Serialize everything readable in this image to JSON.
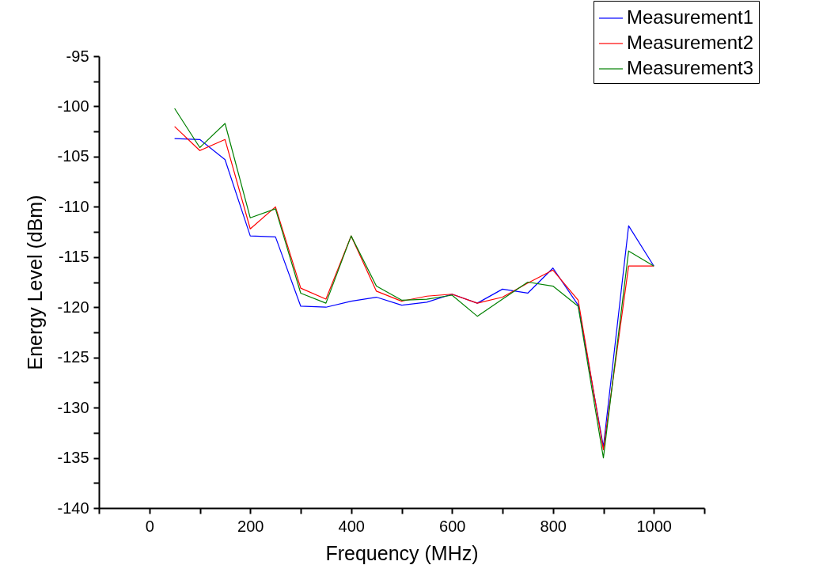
{
  "chart_data": {
    "type": "line",
    "xlabel": "Frequency (MHz)",
    "ylabel": "Energy Level (dBm)",
    "x": [
      50,
      100,
      150,
      200,
      250,
      300,
      350,
      400,
      450,
      500,
      550,
      600,
      650,
      700,
      750,
      800,
      850,
      900,
      950,
      1000
    ],
    "series": [
      {
        "name": "Measurement1",
        "color": "#0000ff",
        "values": [
          -103.2,
          -103.3,
          -105.3,
          -112.9,
          -113.0,
          -119.9,
          -120.0,
          -119.4,
          -119.0,
          -119.8,
          -119.5,
          -118.7,
          -119.6,
          -118.2,
          -118.6,
          -116.1,
          -119.8,
          -133.9,
          -111.9,
          -115.9
        ]
      },
      {
        "name": "Measurement2",
        "color": "#ff0000",
        "values": [
          -102.0,
          -104.4,
          -103.3,
          -112.2,
          -110.0,
          -118.1,
          -119.2,
          -112.9,
          -118.4,
          -119.4,
          -118.9,
          -118.7,
          -119.6,
          -119.0,
          -117.6,
          -116.3,
          -119.3,
          -134.2,
          -115.9,
          -115.9
        ]
      },
      {
        "name": "Measurement3",
        "color": "#008000",
        "values": [
          -100.2,
          -104.1,
          -101.7,
          -111.1,
          -110.2,
          -118.6,
          -119.6,
          -112.9,
          -117.9,
          -119.3,
          -119.2,
          -118.8,
          -120.9,
          -119.2,
          -117.5,
          -117.9,
          -119.9,
          -135.0,
          -114.4,
          -115.9
        ]
      }
    ],
    "xlim": [
      -100,
      1100
    ],
    "xticks": [
      {
        "value": -100,
        "label": null
      },
      0,
      {
        "value": 100,
        "label": null
      },
      200,
      {
        "value": 300,
        "label": null
      },
      400,
      {
        "value": 500,
        "label": null
      },
      600,
      {
        "value": 700,
        "label": null
      },
      800,
      {
        "value": 900,
        "label": null
      },
      1000,
      {
        "value": 1100,
        "label": null
      }
    ],
    "ylim": [
      -140,
      -95
    ],
    "yticks": [
      -140,
      {
        "value": -137.5,
        "label": null
      },
      -135,
      {
        "value": -132.5,
        "label": null
      },
      -130,
      {
        "value": -127.5,
        "label": null
      },
      -125,
      {
        "value": -122.5,
        "label": null
      },
      -120,
      {
        "value": -117.5,
        "label": null
      },
      -115,
      {
        "value": -112.5,
        "label": null
      },
      -110,
      {
        "value": -107.5,
        "label": null
      },
      -105,
      {
        "value": -102.5,
        "label": null
      },
      -100,
      {
        "value": -97.5,
        "label": null
      },
      -95
    ],
    "grid": false,
    "legend": "top right",
    "marker": "none",
    "line_style": "solid"
  }
}
